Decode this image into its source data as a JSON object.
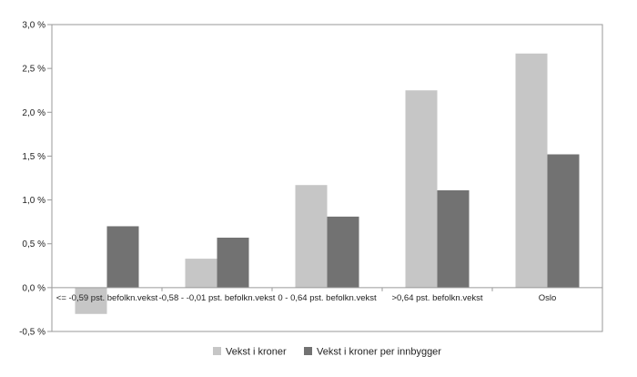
{
  "chart_data": {
    "type": "bar",
    "categories": [
      "<= -0,59 pst. befolkn.vekst",
      "-0,58 - -0,01 pst. befolkn.vekst",
      "0 - 0,64 pst. befolkn.vekst",
      ">0,64 pst. befolkn.vekst",
      "Oslo"
    ],
    "series": [
      {
        "name": "Vekst i kroner",
        "color": "#c6c6c6",
        "values": [
          -0.3,
          0.33,
          1.17,
          2.25,
          2.67
        ]
      },
      {
        "name": "Vekst i kroner per innbygger",
        "color": "#727272",
        "values": [
          0.7,
          0.57,
          0.81,
          1.11,
          1.52
        ]
      }
    ],
    "yticks": [
      -0.5,
      0.0,
      0.5,
      1.0,
      1.5,
      2.0,
      2.5,
      3.0
    ],
    "ytick_labels": [
      "-0,5 %",
      "0,0 %",
      "0,5 %",
      "1,0 %",
      "1,5 %",
      "2,0 %",
      "2,5 %",
      "3,0 %"
    ],
    "ylim": [
      -0.5,
      3.0
    ],
    "title": "",
    "xlabel": "",
    "ylabel": "",
    "grid": false,
    "legend_position": "bottom-center",
    "frame_color": "#9a9a9a"
  }
}
